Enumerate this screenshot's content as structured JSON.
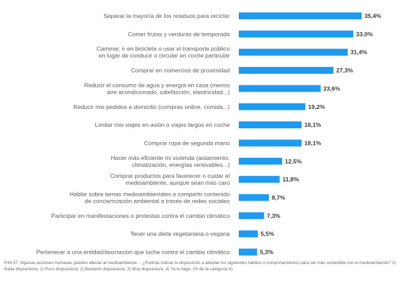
{
  "chart_data": {
    "type": "bar",
    "orientation": "horizontal",
    "bar_color": "#1E9BF0",
    "value_suffix": "%",
    "xlim": [
      0,
      40
    ],
    "categories": [
      [
        "Separar la mayoría de los residuos para reciclar"
      ],
      [
        "Comer frutas y verduras de temporada"
      ],
      [
        "Caminar, ir en bicicleta o usar el transporte público",
        "en lugar de conducir o circular en coche particular"
      ],
      [
        "Comprar en comercios de proximidad"
      ],
      [
        "Reducir el consumo de agua y energía en casa (menos",
        "aire acondicionado, calefacción, electricidad...)"
      ],
      [
        "Reducir mis pedidos a domicilio (compras online, comida...)"
      ],
      [
        "Limitar mis viajes en avión o viajes largos en coche"
      ],
      [
        "Comprar ropa de segunda mano"
      ],
      [
        "Hacer más eficiente mi vivienda (aislamiento,",
        "climatización, energías renovables...)"
      ],
      [
        "Comprar productos para favorecer o cuidar el",
        "medioambiente, aunque sean más caro"
      ],
      [
        "Hablar sobre temas medioambientales o compartir contenido",
        "de concienciación ambiental a través de redes sociales"
      ],
      [
        "Participar en manifestaciones o protestas contra el cambio climático"
      ],
      [
        "Tener una dieta vegetariana o vegana"
      ],
      [
        "Pertenecer a una entidad/asociación que luche contra el cambio climático"
      ]
    ],
    "values": [
      35.4,
      33.0,
      31.4,
      27.3,
      23.6,
      19.2,
      18.1,
      18.1,
      12.5,
      11.8,
      8.7,
      7.3,
      5.5,
      5.3
    ],
    "value_labels": [
      "35,4%",
      "33,0%",
      "31,4%",
      "27,3%",
      "23,6%",
      "19,2%",
      "18,1%",
      "18,1%",
      "12,5%",
      "11,8%",
      "8,7%",
      "7,3%",
      "5,5%",
      "5,3%"
    ]
  },
  "footnote": "P44-57. Algunas acciones humanas pueden afectar al medioambiente… ¿Podrías indicar tu disposición a adoptar los siguientes hábitos o comportamientos para ser más sostenible con el medioambiente? 0) Nada dispuesto/a; 1) Poco dispuesto/a; 2) Bastante dispuesto/a; 3) Muy dispuesto/a; 4) Ya lo hago. (% de la categoría 4)"
}
